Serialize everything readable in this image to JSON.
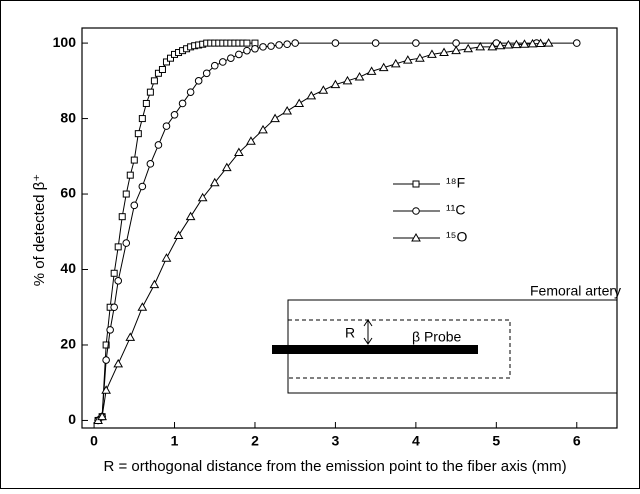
{
  "chart_data": {
    "type": "line",
    "x_label": "R = orthogonal distance from the emission point to the fiber axis (mm)",
    "y_label": "% of detected β⁺",
    "xlim": [
      -0.15,
      6.5
    ],
    "ylim": [
      -2,
      104
    ],
    "xticks": [
      0,
      1,
      2,
      3,
      4,
      5,
      6
    ],
    "yticks": [
      0,
      20,
      40,
      60,
      80,
      100
    ],
    "series": [
      {
        "name": "¹⁸F",
        "color": "#000000",
        "marker": "square",
        "x": [
          0.05,
          0.1,
          0.15,
          0.2,
          0.25,
          0.3,
          0.35,
          0.4,
          0.45,
          0.5,
          0.55,
          0.6,
          0.65,
          0.7,
          0.75,
          0.8,
          0.85,
          0.9,
          0.95,
          1.0,
          1.05,
          1.1,
          1.15,
          1.2,
          1.25,
          1.3,
          1.35,
          1.4,
          1.45,
          1.5,
          1.55,
          1.6,
          1.65,
          1.7,
          1.75,
          1.8,
          1.85,
          1.9,
          2.0
        ],
        "values": [
          0,
          1,
          20,
          30,
          39,
          46,
          54,
          60,
          65,
          69,
          76,
          80,
          84,
          87,
          90,
          92,
          93,
          95,
          96,
          97,
          97.5,
          98,
          98.5,
          99,
          99.3,
          99.5,
          99.7,
          100,
          100,
          100,
          100,
          100,
          100,
          100,
          100,
          100,
          100,
          100,
          100
        ]
      },
      {
        "name": "¹¹C",
        "color": "#000000",
        "marker": "circle",
        "x": [
          0.05,
          0.1,
          0.15,
          0.2,
          0.25,
          0.3,
          0.4,
          0.5,
          0.6,
          0.7,
          0.8,
          0.9,
          1.0,
          1.1,
          1.2,
          1.3,
          1.4,
          1.5,
          1.6,
          1.7,
          1.8,
          1.9,
          2.0,
          2.1,
          2.2,
          2.3,
          2.4,
          2.5,
          3.0,
          3.5,
          4.0,
          4.5,
          5.0,
          5.5,
          6.0
        ],
        "values": [
          0,
          1,
          16,
          24,
          30,
          37,
          47,
          57,
          62,
          68,
          73,
          78,
          81,
          84,
          87,
          90,
          92,
          94,
          95,
          96,
          97,
          98,
          98.5,
          99,
          99.2,
          99.5,
          99.7,
          100,
          100,
          100,
          100,
          100,
          100,
          100,
          100
        ]
      },
      {
        "name": "¹⁵O",
        "color": "#000000",
        "marker": "triangle",
        "x": [
          0.05,
          0.1,
          0.15,
          0.3,
          0.45,
          0.6,
          0.75,
          0.9,
          1.05,
          1.2,
          1.35,
          1.5,
          1.65,
          1.8,
          1.95,
          2.1,
          2.25,
          2.4,
          2.55,
          2.7,
          2.85,
          3.0,
          3.15,
          3.3,
          3.45,
          3.6,
          3.75,
          3.9,
          4.05,
          4.2,
          4.35,
          4.5,
          4.65,
          4.8,
          4.95,
          5.05,
          5.15,
          5.25,
          5.35,
          5.45,
          5.55,
          5.65
        ],
        "values": [
          0,
          1,
          8,
          15,
          22,
          30,
          36,
          43,
          49,
          54,
          59,
          63,
          67,
          71,
          74,
          77,
          80,
          82,
          84,
          86,
          87.5,
          89,
          90,
          91,
          92.5,
          93.5,
          94.5,
          95.5,
          96,
          97,
          97.5,
          98,
          98.5,
          99,
          99,
          99.3,
          99.5,
          99.6,
          99.7,
          99.8,
          99.9,
          100
        ]
      }
    ],
    "inset": {
      "title": "Femoral artery",
      "radius_label": "R",
      "probe_label": "β Probe"
    }
  }
}
